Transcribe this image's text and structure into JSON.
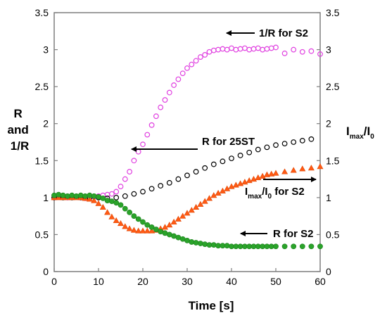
{
  "chart_data": {
    "type": "scatter",
    "x_label": "Time [s]",
    "y_left_label_lines": [
      "R",
      "and",
      "1/R"
    ],
    "y_right_label": {
      "main": "I",
      "sub1": "max",
      "mid": "/I",
      "sub2": "0"
    },
    "x_range": [
      0,
      60
    ],
    "y_left_range": [
      0,
      3.5
    ],
    "y_right_range": [
      0,
      3.5
    ],
    "x_ticks": [
      "0",
      "10",
      "20",
      "30",
      "40",
      "50",
      "60"
    ],
    "y_left_ticks": [
      "0",
      "0.5",
      "1",
      "1.5",
      "2",
      "2.5",
      "3",
      "3.5"
    ],
    "y_right_ticks": [
      "0",
      "0.5",
      "1",
      "1.5",
      "2",
      "2.5",
      "3",
      "3.5"
    ],
    "grid": false,
    "colors": {
      "one_over_r_s2": "#e040e0",
      "r_25st": "#000000",
      "imax_s2": "#ff5a14",
      "r_s2": "#2aa32a"
    },
    "annotations": {
      "one_over_r_s2": "1/R for S2",
      "r_25st": "R for 25ST",
      "imax_s2": {
        "main": "I",
        "sub1": "max",
        "mid": "/I",
        "sub2": "0",
        "tail": " for S2"
      },
      "r_s2": "R for S2"
    },
    "series": [
      {
        "key": "one_over_r_s2",
        "marker": "circle-open",
        "points": [
          [
            0,
            1.0
          ],
          [
            1,
            1.02
          ],
          [
            2,
            1.01
          ],
          [
            3,
            1.0
          ],
          [
            4,
            1.02
          ],
          [
            5,
            1.01
          ],
          [
            6,
            1.0
          ],
          [
            7,
            0.99
          ],
          [
            8,
            1.0
          ],
          [
            9,
            1.01
          ],
          [
            10,
            1.02
          ],
          [
            11,
            1.03
          ],
          [
            12,
            1.04
          ],
          [
            13,
            1.05
          ],
          [
            14,
            1.08
          ],
          [
            15,
            1.15
          ],
          [
            16,
            1.25
          ],
          [
            17,
            1.35
          ],
          [
            18,
            1.5
          ],
          [
            19,
            1.62
          ],
          [
            20,
            1.72
          ],
          [
            21,
            1.85
          ],
          [
            22,
            1.98
          ],
          [
            23,
            2.1
          ],
          [
            24,
            2.22
          ],
          [
            25,
            2.32
          ],
          [
            26,
            2.42
          ],
          [
            27,
            2.52
          ],
          [
            28,
            2.6
          ],
          [
            29,
            2.68
          ],
          [
            30,
            2.75
          ],
          [
            31,
            2.8
          ],
          [
            32,
            2.85
          ],
          [
            33,
            2.9
          ],
          [
            34,
            2.93
          ],
          [
            35,
            2.97
          ],
          [
            36,
            2.99
          ],
          [
            37,
            3.0
          ],
          [
            38,
            3.01
          ],
          [
            39,
            3.0
          ],
          [
            40,
            3.02
          ],
          [
            41,
            3.0
          ],
          [
            42,
            3.01
          ],
          [
            43,
            3.02
          ],
          [
            44,
            3.0
          ],
          [
            45,
            3.01
          ],
          [
            46,
            3.02
          ],
          [
            47,
            3.0
          ],
          [
            48,
            3.01
          ],
          [
            49,
            3.02
          ],
          [
            50,
            3.03
          ],
          [
            52,
            2.95
          ],
          [
            54,
            3.0
          ],
          [
            56,
            2.97
          ],
          [
            58,
            2.98
          ],
          [
            60,
            2.94
          ]
        ]
      },
      {
        "key": "r_25st",
        "marker": "circle-open",
        "points": [
          [
            0,
            1.0
          ],
          [
            2,
            1.0
          ],
          [
            4,
            1.0
          ],
          [
            6,
            1.0
          ],
          [
            8,
            1.0
          ],
          [
            10,
            1.0
          ],
          [
            12,
            0.99
          ],
          [
            14,
            1.0
          ],
          [
            16,
            1.02
          ],
          [
            18,
            1.05
          ],
          [
            20,
            1.08
          ],
          [
            22,
            1.12
          ],
          [
            24,
            1.16
          ],
          [
            26,
            1.2
          ],
          [
            28,
            1.25
          ],
          [
            30,
            1.3
          ],
          [
            32,
            1.35
          ],
          [
            34,
            1.4
          ],
          [
            36,
            1.45
          ],
          [
            38,
            1.49
          ],
          [
            40,
            1.53
          ],
          [
            42,
            1.57
          ],
          [
            44,
            1.61
          ],
          [
            46,
            1.65
          ],
          [
            48,
            1.68
          ],
          [
            50,
            1.71
          ],
          [
            52,
            1.73
          ],
          [
            54,
            1.75
          ],
          [
            56,
            1.77
          ],
          [
            58,
            1.79
          ]
        ]
      },
      {
        "key": "imax_s2",
        "marker": "triangle",
        "points": [
          [
            0,
            1.0
          ],
          [
            1,
            1.0
          ],
          [
            2,
            1.0
          ],
          [
            3,
            1.0
          ],
          [
            4,
            1.0
          ],
          [
            5,
            1.0
          ],
          [
            6,
            1.0
          ],
          [
            7,
            0.99
          ],
          [
            8,
            0.98
          ],
          [
            9,
            0.96
          ],
          [
            10,
            0.92
          ],
          [
            11,
            0.87
          ],
          [
            12,
            0.8
          ],
          [
            13,
            0.74
          ],
          [
            14,
            0.69
          ],
          [
            15,
            0.65
          ],
          [
            16,
            0.61
          ],
          [
            17,
            0.58
          ],
          [
            18,
            0.56
          ],
          [
            19,
            0.55
          ],
          [
            20,
            0.55
          ],
          [
            21,
            0.55
          ],
          [
            22,
            0.55
          ],
          [
            23,
            0.56
          ],
          [
            24,
            0.58
          ],
          [
            25,
            0.6
          ],
          [
            26,
            0.63
          ],
          [
            27,
            0.67
          ],
          [
            28,
            0.71
          ],
          [
            29,
            0.75
          ],
          [
            30,
            0.79
          ],
          [
            31,
            0.83
          ],
          [
            32,
            0.87
          ],
          [
            33,
            0.91
          ],
          [
            34,
            0.95
          ],
          [
            35,
            0.99
          ],
          [
            36,
            1.03
          ],
          [
            37,
            1.06
          ],
          [
            38,
            1.09
          ],
          [
            39,
            1.12
          ],
          [
            40,
            1.15
          ],
          [
            41,
            1.17
          ],
          [
            42,
            1.19
          ],
          [
            43,
            1.21
          ],
          [
            44,
            1.23
          ],
          [
            45,
            1.25
          ],
          [
            46,
            1.27
          ],
          [
            47,
            1.29
          ],
          [
            48,
            1.31
          ],
          [
            49,
            1.32
          ],
          [
            50,
            1.33
          ],
          [
            52,
            1.35
          ],
          [
            54,
            1.37
          ],
          [
            56,
            1.39
          ],
          [
            58,
            1.4
          ],
          [
            60,
            1.42
          ]
        ]
      },
      {
        "key": "r_s2",
        "marker": "circle-filled",
        "points": [
          [
            0,
            1.03
          ],
          [
            1,
            1.04
          ],
          [
            2,
            1.03
          ],
          [
            3,
            1.02
          ],
          [
            4,
            1.03
          ],
          [
            5,
            1.02
          ],
          [
            6,
            1.03
          ],
          [
            7,
            1.02
          ],
          [
            8,
            1.03
          ],
          [
            9,
            1.02
          ],
          [
            10,
            1.01
          ],
          [
            11,
            0.99
          ],
          [
            12,
            0.96
          ],
          [
            13,
            0.95
          ],
          [
            14,
            0.93
          ],
          [
            15,
            0.9
          ],
          [
            16,
            0.85
          ],
          [
            17,
            0.8
          ],
          [
            18,
            0.75
          ],
          [
            19,
            0.71
          ],
          [
            20,
            0.67
          ],
          [
            21,
            0.63
          ],
          [
            22,
            0.6
          ],
          [
            23,
            0.57
          ],
          [
            24,
            0.54
          ],
          [
            25,
            0.52
          ],
          [
            26,
            0.5
          ],
          [
            27,
            0.48
          ],
          [
            28,
            0.46
          ],
          [
            29,
            0.44
          ],
          [
            30,
            0.42
          ],
          [
            31,
            0.4
          ],
          [
            32,
            0.39
          ],
          [
            33,
            0.38
          ],
          [
            34,
            0.37
          ],
          [
            35,
            0.36
          ],
          [
            36,
            0.36
          ],
          [
            37,
            0.35
          ],
          [
            38,
            0.35
          ],
          [
            39,
            0.35
          ],
          [
            40,
            0.34
          ],
          [
            41,
            0.34
          ],
          [
            42,
            0.34
          ],
          [
            43,
            0.34
          ],
          [
            44,
            0.34
          ],
          [
            45,
            0.34
          ],
          [
            46,
            0.34
          ],
          [
            47,
            0.34
          ],
          [
            48,
            0.34
          ],
          [
            49,
            0.34
          ],
          [
            50,
            0.34
          ],
          [
            52,
            0.34
          ],
          [
            54,
            0.34
          ],
          [
            56,
            0.34
          ],
          [
            58,
            0.34
          ],
          [
            60,
            0.34
          ]
        ]
      }
    ]
  }
}
